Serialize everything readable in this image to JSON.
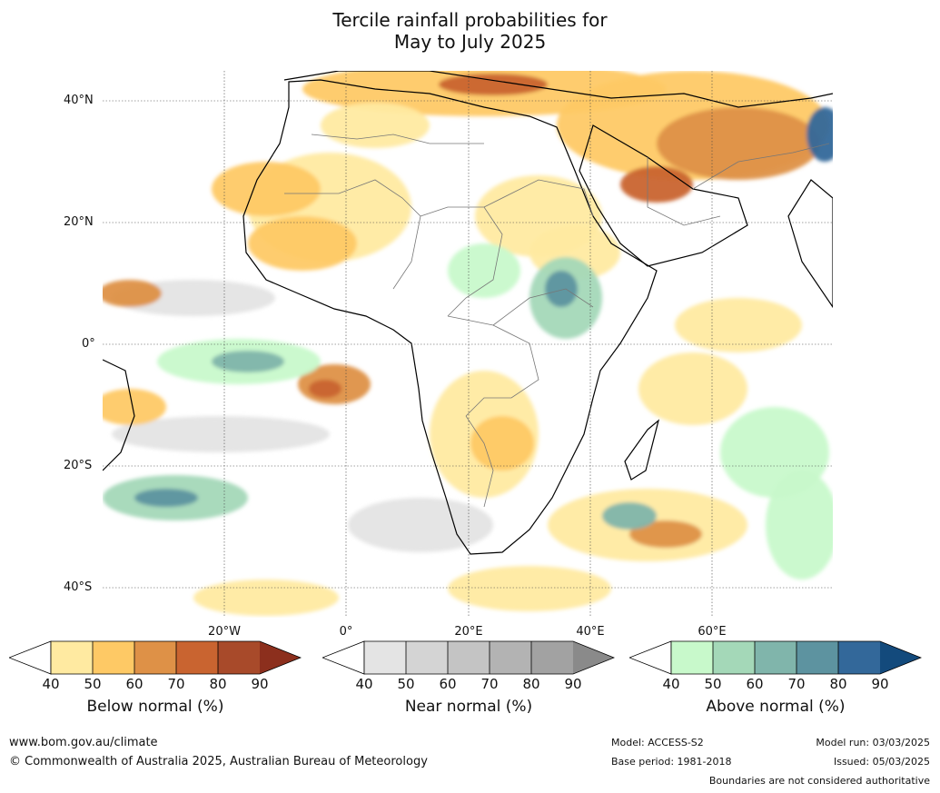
{
  "title_line1": "Tercile rainfall probabilities for",
  "title_line2": "May to July 2025",
  "map": {
    "lat_labels": [
      "40°N",
      "20°N",
      "0°",
      "20°S",
      "40°S"
    ],
    "lon_labels": [
      "20°W",
      "0°",
      "20°E",
      "40°E",
      "60°E"
    ],
    "colors": {
      "ocean": "#ffffff",
      "below": [
        "#ffeaa1",
        "#fec965",
        "#de9147",
        "#c96430",
        "#a84a2a",
        "#8c2f1d"
      ],
      "near": [
        "#e4e4e4",
        "#d4d4d4",
        "#c4c4c4",
        "#b3b3b3",
        "#a2a2a2",
        "#8a8a8a"
      ],
      "above": [
        "#c8f9cb",
        "#a4d8b8",
        "#80b5ab",
        "#5d93a0",
        "#33689a",
        "#134a7c"
      ]
    }
  },
  "colorbars": [
    {
      "title": "Below normal (%)",
      "ticks": [
        "40",
        "50",
        "60",
        "70",
        "80",
        "90"
      ],
      "colors": [
        "#ffeaa1",
        "#fec965",
        "#de9147",
        "#c96430",
        "#a84a2a",
        "#8c2f1d"
      ]
    },
    {
      "title": "Near normal (%)",
      "ticks": [
        "40",
        "50",
        "60",
        "70",
        "80",
        "90"
      ],
      "colors": [
        "#e4e4e4",
        "#d4d4d4",
        "#c4c4c4",
        "#b3b3b3",
        "#a2a2a2",
        "#8a8a8a"
      ]
    },
    {
      "title": "Above normal (%)",
      "ticks": [
        "40",
        "50",
        "60",
        "70",
        "80",
        "90"
      ],
      "colors": [
        "#c8f9cb",
        "#a4d8b8",
        "#80b5ab",
        "#5d93a0",
        "#33689a",
        "#134a7c"
      ]
    }
  ],
  "footer": {
    "website": "www.bom.gov.au/climate",
    "copyright": "© Commonwealth of Australia 2025, Australian Bureau of Meteorology",
    "model": "Model: ACCESS-S2",
    "base_period": "Base period: 1981-2018",
    "model_run": "Model run: 03/03/2025",
    "issued": "Issued: 05/03/2025",
    "disclaimer": "Boundaries are not considered authoritative"
  }
}
